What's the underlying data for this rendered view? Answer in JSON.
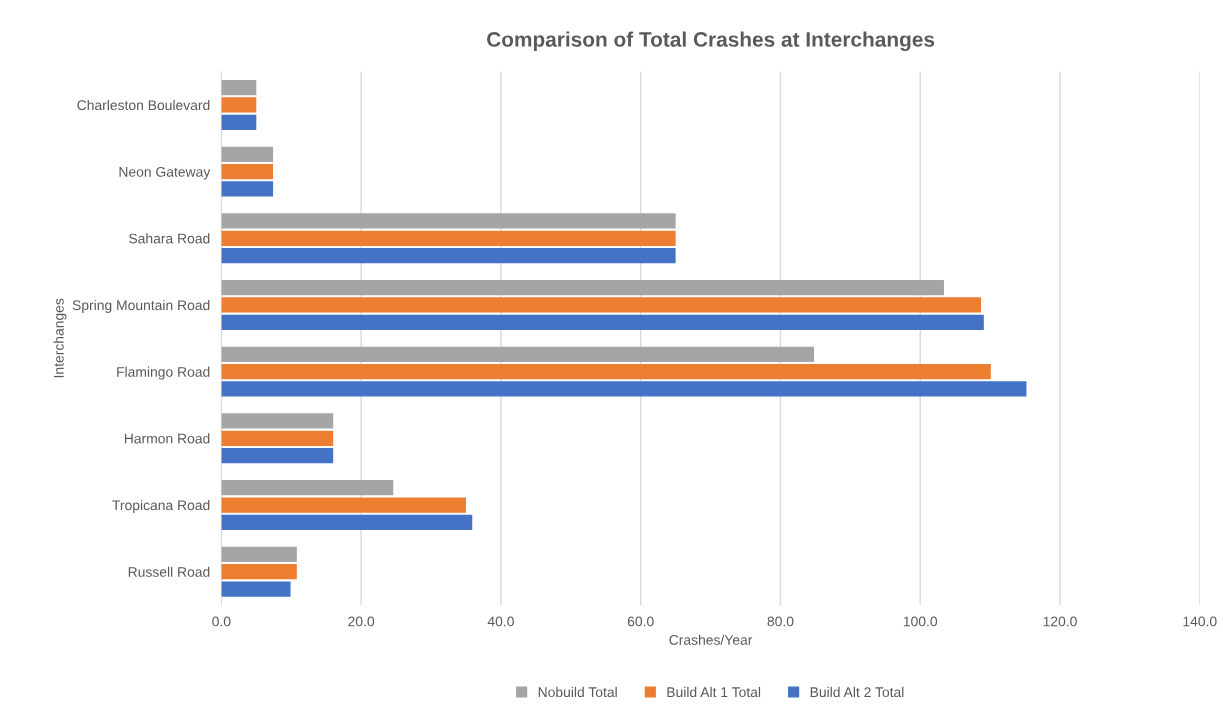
{
  "chart_data": {
    "type": "bar",
    "orientation": "horizontal",
    "title": "Comparison of Total Crashes at Interchanges",
    "xlabel": "Crashes/Year",
    "ylabel": "Interchanges",
    "categories": [
      "Charleston Boulevard",
      "Neon Gateway",
      "Sahara Road",
      "Spring Mountain Road",
      "Flamingo Road",
      "Harmon Road",
      "Tropicana Road",
      "Russell Road"
    ],
    "series": [
      {
        "name": "Nobuild Total",
        "color": "#a5a5a5",
        "values": [
          5.0,
          7.4,
          65.0,
          103.4,
          84.8,
          16.0,
          24.6,
          10.8
        ]
      },
      {
        "name": "Build Alt 1 Total",
        "color": "#ed7d31",
        "values": [
          5.0,
          7.4,
          65.0,
          108.7,
          110.1,
          16.0,
          35.0,
          10.8
        ]
      },
      {
        "name": "Build Alt 2 Total",
        "color": "#4472c4",
        "values": [
          5.0,
          7.4,
          65.0,
          109.1,
          115.2,
          16.0,
          35.9,
          9.9
        ]
      }
    ],
    "xlim": [
      0,
      140
    ],
    "xticks": [
      {
        "value": 0,
        "label": "0.0"
      },
      {
        "value": 20,
        "label": "20.0"
      },
      {
        "value": 40,
        "label": "40.0"
      },
      {
        "value": 60,
        "label": "60.0"
      },
      {
        "value": 80,
        "label": "80.0"
      },
      {
        "value": 100,
        "label": "100.0"
      },
      {
        "value": 120,
        "label": "120.0"
      },
      {
        "value": 140,
        "label": "140.0"
      }
    ],
    "grid": "x",
    "legend": "bottom"
  }
}
